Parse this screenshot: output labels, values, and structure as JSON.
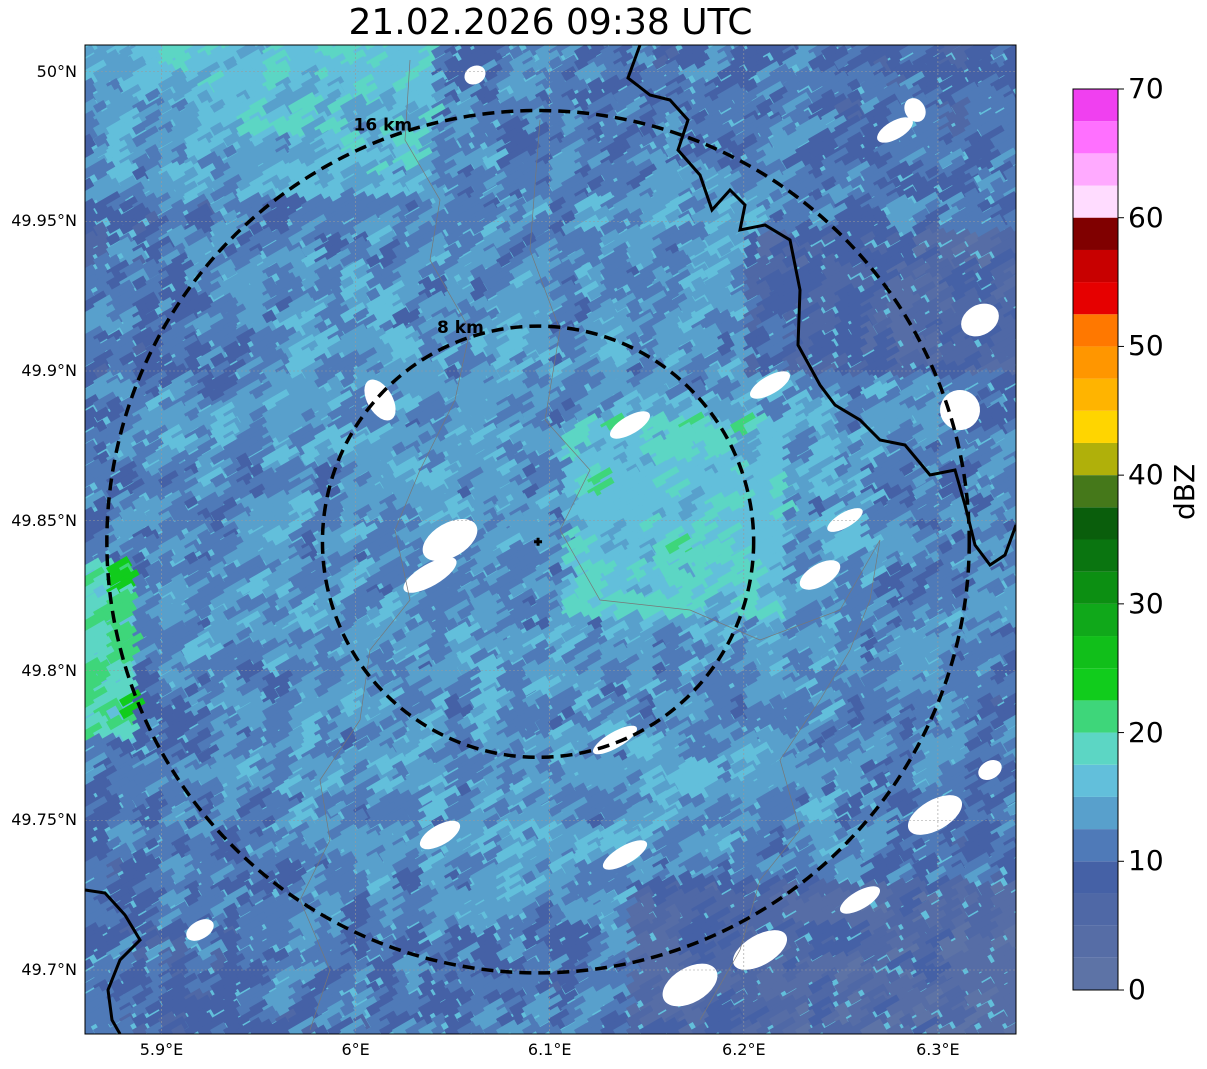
{
  "title": "21.02.2026 09:38 UTC",
  "map": {
    "lat_ticks": [
      {
        "label": "50°N",
        "value": 50.0
      },
      {
        "label": "49.95°N",
        "value": 49.95
      },
      {
        "label": "49.9°N",
        "value": 49.9
      },
      {
        "label": "49.85°N",
        "value": 49.85
      },
      {
        "label": "49.8°N",
        "value": 49.8
      },
      {
        "label": "49.75°N",
        "value": 49.75
      },
      {
        "label": "49.7°N",
        "value": 49.7
      }
    ],
    "lon_ticks": [
      {
        "label": "5.9°E",
        "value": 5.9
      },
      {
        "label": "6°E",
        "value": 6.0
      },
      {
        "label": "6.1°E",
        "value": 6.1
      },
      {
        "label": "6.2°E",
        "value": 6.2
      },
      {
        "label": "6.3°E",
        "value": 6.3
      }
    ],
    "radar_site": {
      "lon": 6.094,
      "lat": 49.843
    },
    "range_rings": [
      {
        "label": "8 km",
        "radius_km": 8
      },
      {
        "label": "16 km",
        "radius_km": 16
      }
    ]
  },
  "colorbar": {
    "label": "dBZ",
    "min": 0,
    "max": 70,
    "ticks": [
      "0",
      "10",
      "20",
      "30",
      "40",
      "50",
      "60",
      "70"
    ],
    "colors": [
      "#5d73a6",
      "#566da6",
      "#4f68a6",
      "#4561a6",
      "#4f7ab8",
      "#58a0cc",
      "#62bfdb",
      "#5cd6c4",
      "#3ed67a",
      "#11cc1c",
      "#11bf1a",
      "#10a81a",
      "#0c8f12",
      "#0a7510",
      "#0a5e0c",
      "#45781a",
      "#b0b00a",
      "#ffd500",
      "#ffb400",
      "#ff9600",
      "#ff7800",
      "#e60000",
      "#c80000",
      "#a80000",
      "#800000",
      "#ffdcff",
      "#ffaaff",
      "#ff70ff",
      "#f040f0"
    ]
  }
}
